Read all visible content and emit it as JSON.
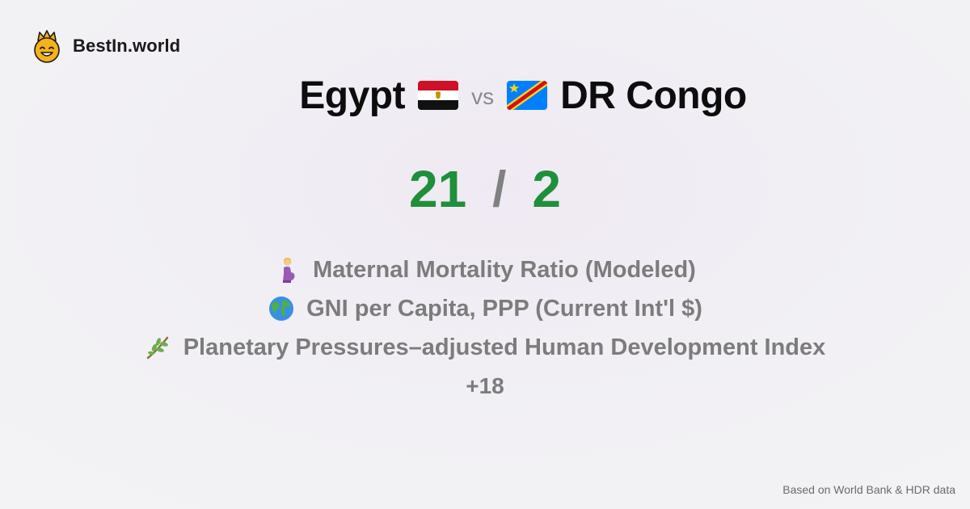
{
  "brand": {
    "name": "BestIn.world",
    "logo_icon": "crowned-smiley-icon"
  },
  "comparison": {
    "left_country": "Egypt",
    "left_flag": "egypt-flag-icon",
    "vs_label": "vs",
    "right_country": "DR Congo",
    "right_flag": "dr-congo-flag-icon"
  },
  "score": {
    "left": "21",
    "separator": "/",
    "right": "2",
    "color": "#1e8f3a"
  },
  "metrics": [
    {
      "icon": "pregnant-woman-icon",
      "label": "Maternal Mortality Ratio (Modeled)"
    },
    {
      "icon": "globe-icon",
      "label": "GNI per Capita, PPP (Current Int'l $)"
    },
    {
      "icon": "plant-branch-icon",
      "label": "Planetary Pressures–adjusted Human Development Index"
    }
  ],
  "more_label": "+18",
  "footer": {
    "source": "Based on World Bank & HDR data"
  }
}
